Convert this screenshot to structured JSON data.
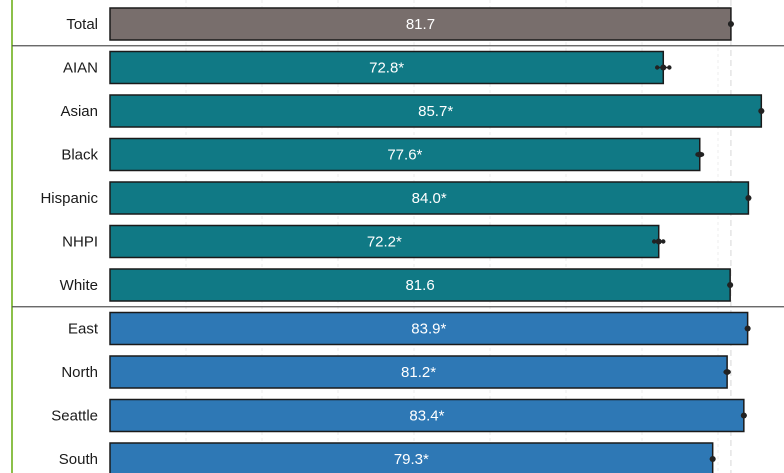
{
  "chart_data": {
    "type": "bar",
    "orientation": "horizontal",
    "grid": true,
    "categories": [
      "Total",
      "AIAN",
      "Asian",
      "Black",
      "Hispanic",
      "NHPI",
      "White",
      "East",
      "North",
      "Seattle",
      "South"
    ],
    "values": [
      81.7,
      72.8,
      85.7,
      77.6,
      84.0,
      72.2,
      81.6,
      83.9,
      81.2,
      83.4,
      79.3
    ],
    "value_labels": [
      "81.7",
      "72.8*",
      "85.7*",
      "77.6*",
      "84.0*",
      "72.2*",
      "81.6",
      "83.9*",
      "81.2*",
      "83.4*",
      "79.3*"
    ],
    "error_low": [
      81.6,
      72.0,
      85.6,
      77.3,
      83.9,
      71.6,
      81.5,
      83.8,
      81.0,
      83.3,
      79.2
    ],
    "error_high": [
      81.8,
      73.6,
      85.8,
      77.9,
      84.1,
      72.8,
      81.7,
      84.0,
      81.4,
      83.5,
      79.4
    ],
    "groups": [
      {
        "categories": [
          "Total"
        ],
        "color": "#786e6c"
      },
      {
        "categories": [
          "AIAN",
          "Asian",
          "Black",
          "Hispanic",
          "NHPI",
          "White"
        ],
        "color": "#107985"
      },
      {
        "categories": [
          "East",
          "North",
          "Seattle",
          "South"
        ],
        "color": "#2e78b5"
      }
    ],
    "xlim": [
      0,
      87
    ],
    "reference_line": 81.7
  }
}
